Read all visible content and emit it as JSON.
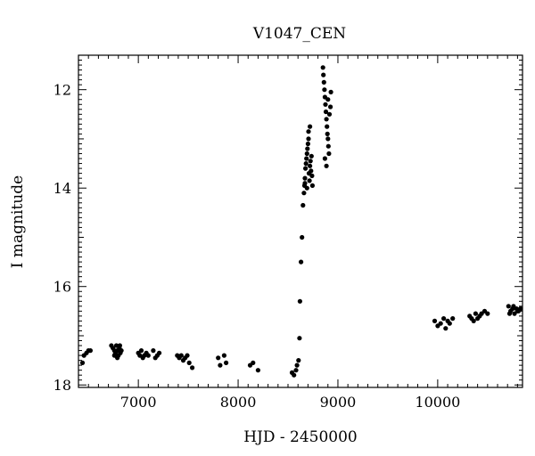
{
  "chart_data": {
    "type": "scatter",
    "title": "V1047_CEN",
    "xlabel": "HJD - 2450000",
    "ylabel": "I magnitude",
    "xlim": [
      6400,
      10850
    ],
    "ylim": [
      11.3,
      18.05
    ],
    "y_inverted": true,
    "grid": false,
    "x_ticks": [
      7000,
      8000,
      9000,
      10000
    ],
    "y_ticks": [
      12,
      14,
      16,
      18
    ],
    "colors": {
      "points": "#000000",
      "axes": "#000000",
      "background": "#ffffff"
    },
    "series": [
      {
        "marker": "filled-circle",
        "x": [
          6440,
          6455,
          6480,
          6500,
          6520,
          6730,
          6745,
          6760,
          6770,
          6780,
          6790,
          6800,
          6810,
          6820,
          6830,
          6760,
          6790,
          6815,
          7000,
          7015,
          7030,
          7045,
          7060,
          7080,
          7100,
          7150,
          7170,
          7190,
          7210,
          7390,
          7410,
          7430,
          7450,
          7470,
          7490,
          7510,
          7540,
          7800,
          7820,
          7860,
          7880,
          8120,
          8150,
          8200,
          8540,
          8560,
          8580,
          8590,
          8605,
          8615,
          8620,
          8630,
          8640,
          8650,
          8660,
          8665,
          8670,
          8675,
          8680,
          8685,
          8690,
          8695,
          8700,
          8705,
          8710,
          8715,
          8720,
          8725,
          8730,
          8740,
          8670,
          8690,
          8705,
          8720,
          8735,
          8745,
          8850,
          8855,
          8860,
          8865,
          8870,
          8875,
          8880,
          8885,
          8890,
          8895,
          8900,
          8905,
          8910,
          8870,
          8885,
          8900,
          8915,
          8925,
          8930,
          9970,
          10000,
          10030,
          10060,
          10080,
          10100,
          10120,
          10150,
          10320,
          10340,
          10360,
          10380,
          10400,
          10420,
          10440,
          10470,
          10500,
          10710,
          10730,
          10750,
          10770,
          10790,
          10810,
          10830,
          10720,
          10760,
          10800
        ],
        "y": [
          17.55,
          17.4,
          17.35,
          17.3,
          17.3,
          17.2,
          17.25,
          17.3,
          17.35,
          17.2,
          17.3,
          17.4,
          17.25,
          17.35,
          17.3,
          17.4,
          17.45,
          17.2,
          17.35,
          17.4,
          17.3,
          17.45,
          17.4,
          17.35,
          17.4,
          17.3,
          17.45,
          17.4,
          17.35,
          17.4,
          17.45,
          17.4,
          17.5,
          17.45,
          17.4,
          17.55,
          17.65,
          17.45,
          17.6,
          17.4,
          17.55,
          17.6,
          17.55,
          17.7,
          17.75,
          17.8,
          17.7,
          17.6,
          17.5,
          17.05,
          16.3,
          15.5,
          15.0,
          14.35,
          14.1,
          13.95,
          13.8,
          13.6,
          13.5,
          13.4,
          13.3,
          13.2,
          13.1,
          13.0,
          13.7,
          13.85,
          13.55,
          13.45,
          13.65,
          13.75,
          13.9,
          14.0,
          12.85,
          12.75,
          13.35,
          13.95,
          11.55,
          11.7,
          11.85,
          12.0,
          12.15,
          12.3,
          12.45,
          12.6,
          12.75,
          12.9,
          13.0,
          13.15,
          13.3,
          13.4,
          13.55,
          12.2,
          12.5,
          12.35,
          12.05,
          16.7,
          16.8,
          16.75,
          16.65,
          16.85,
          16.7,
          16.75,
          16.65,
          16.6,
          16.65,
          16.7,
          16.55,
          16.65,
          16.6,
          16.55,
          16.5,
          16.55,
          16.4,
          16.5,
          16.45,
          16.55,
          16.45,
          16.5,
          16.45,
          16.55,
          16.4,
          16.5
        ]
      }
    ]
  }
}
